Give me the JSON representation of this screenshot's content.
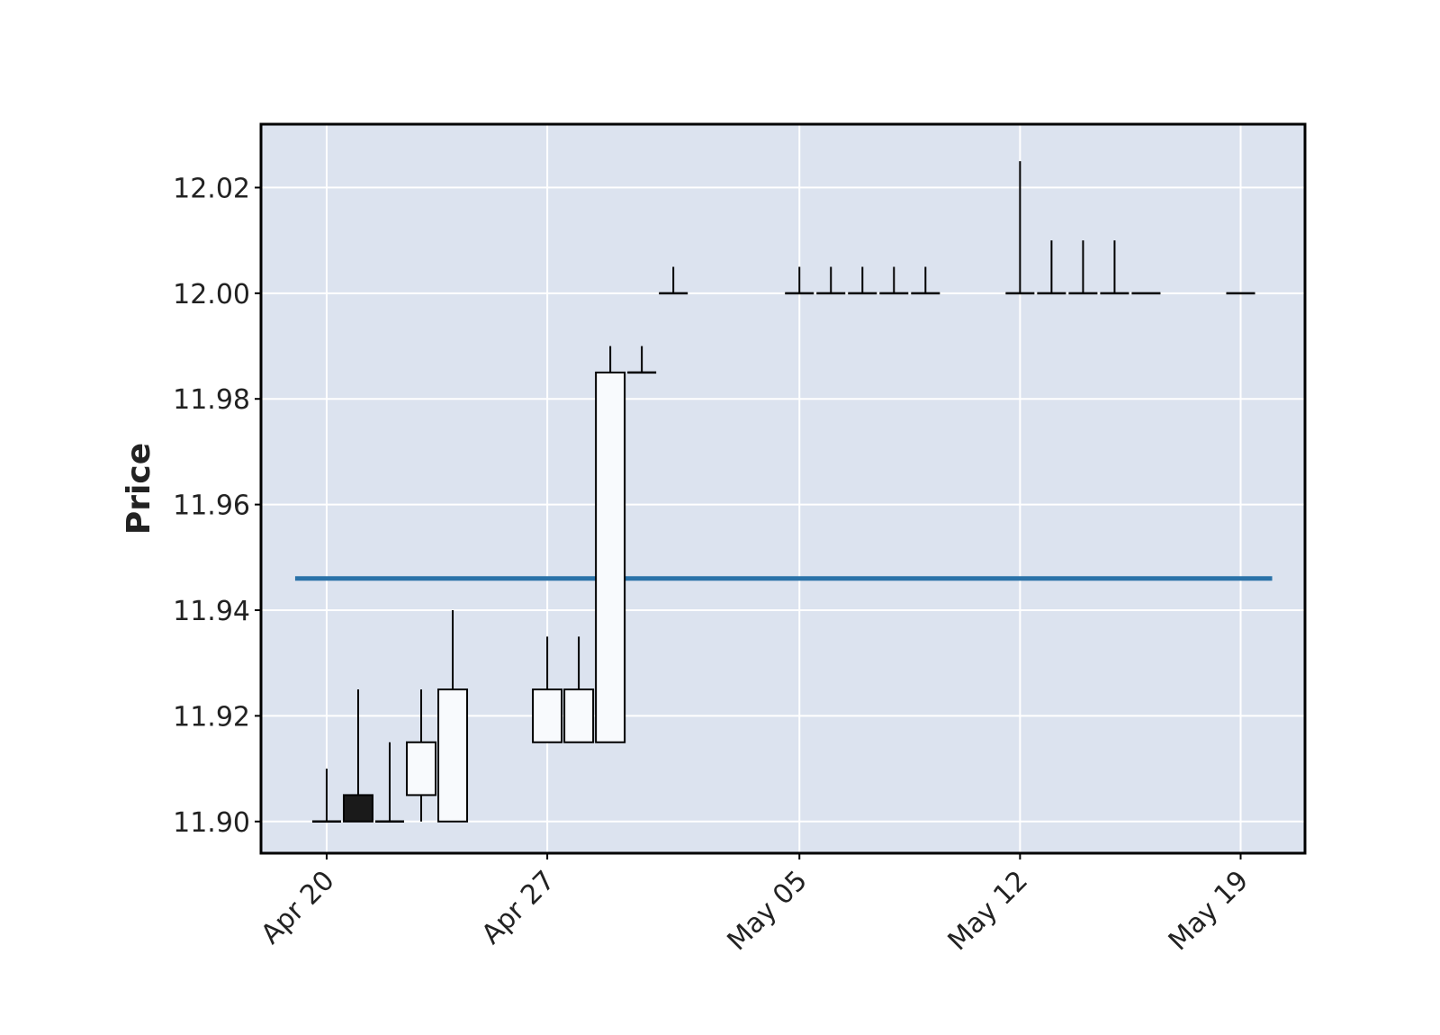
{
  "chart_data": {
    "type": "candlestick",
    "title": "",
    "xlabel": "",
    "ylabel": "Price",
    "ylim": [
      11.894,
      12.032
    ],
    "xlim": [
      "2025-04-17 22:00",
      "2025-05-21 01:00"
    ],
    "x_ticks": [
      {
        "date": "2025-04-20",
        "label": "Apr 20"
      },
      {
        "date": "2025-04-27",
        "label": "Apr 27"
      },
      {
        "date": "2025-05-05",
        "label": "May 05"
      },
      {
        "date": "2025-05-12",
        "label": "May 12"
      },
      {
        "date": "2025-05-19",
        "label": "May 19"
      }
    ],
    "y_ticks": [
      {
        "value": 11.9,
        "label": "11.90"
      },
      {
        "value": 11.92,
        "label": "11.92"
      },
      {
        "value": 11.94,
        "label": "11.94"
      },
      {
        "value": 11.96,
        "label": "11.96"
      },
      {
        "value": 11.98,
        "label": "11.98"
      },
      {
        "value": 12.0,
        "label": "12.00"
      },
      {
        "value": 12.02,
        "label": "12.02"
      }
    ],
    "grid": true,
    "candles": [
      {
        "date": "2025-04-20",
        "open": 11.9,
        "high": 11.91,
        "low": 11.9,
        "close": 11.9
      },
      {
        "date": "2025-04-21",
        "open": 11.905,
        "high": 11.925,
        "low": 11.9,
        "close": 11.9
      },
      {
        "date": "2025-04-22",
        "open": 11.9,
        "high": 11.915,
        "low": 11.9,
        "close": 11.9
      },
      {
        "date": "2025-04-23",
        "open": 11.905,
        "high": 11.925,
        "low": 11.9,
        "close": 11.915
      },
      {
        "date": "2025-04-24",
        "open": 11.9,
        "high": 11.94,
        "low": 11.9,
        "close": 11.925
      },
      {
        "date": "2025-04-27",
        "open": 11.915,
        "high": 11.935,
        "low": 11.915,
        "close": 11.925
      },
      {
        "date": "2025-04-28",
        "open": 11.915,
        "high": 11.935,
        "low": 11.915,
        "close": 11.925
      },
      {
        "date": "2025-04-29",
        "open": 11.915,
        "high": 11.99,
        "low": 11.915,
        "close": 11.985
      },
      {
        "date": "2025-04-30",
        "open": 11.985,
        "high": 11.99,
        "low": 11.985,
        "close": 11.985
      },
      {
        "date": "2025-05-01",
        "open": 12.0,
        "high": 12.005,
        "low": 12.0,
        "close": 12.0
      },
      {
        "date": "2025-05-05",
        "open": 12.0,
        "high": 12.005,
        "low": 12.0,
        "close": 12.0
      },
      {
        "date": "2025-05-06",
        "open": 12.0,
        "high": 12.005,
        "low": 12.0,
        "close": 12.0
      },
      {
        "date": "2025-05-07",
        "open": 12.0,
        "high": 12.005,
        "low": 12.0,
        "close": 12.0
      },
      {
        "date": "2025-05-08",
        "open": 12.0,
        "high": 12.005,
        "low": 12.0,
        "close": 12.0
      },
      {
        "date": "2025-05-09",
        "open": 12.0,
        "high": 12.005,
        "low": 12.0,
        "close": 12.0
      },
      {
        "date": "2025-05-12",
        "open": 12.0,
        "high": 12.025,
        "low": 12.0,
        "close": 12.0
      },
      {
        "date": "2025-05-13",
        "open": 12.0,
        "high": 12.01,
        "low": 12.0,
        "close": 12.0
      },
      {
        "date": "2025-05-14",
        "open": 12.0,
        "high": 12.01,
        "low": 12.0,
        "close": 12.0
      },
      {
        "date": "2025-05-15",
        "open": 12.0,
        "high": 12.01,
        "low": 12.0,
        "close": 12.0
      },
      {
        "date": "2025-05-16",
        "open": 12.0,
        "high": 12.0,
        "low": 12.0,
        "close": 12.0
      },
      {
        "date": "2025-05-19",
        "open": 12.0,
        "high": 12.0,
        "low": 12.0,
        "close": 12.0
      }
    ],
    "hline": {
      "value": 11.946,
      "from": "2025-04-19",
      "to": "2025-05-20",
      "color": "#2a72a8"
    },
    "colors": {
      "plot_bg": "#dce3ef",
      "grid": "#ffffff",
      "up_fill": "#f8fafd",
      "down_fill": "#1a1a1a",
      "edge": "#000000"
    }
  }
}
